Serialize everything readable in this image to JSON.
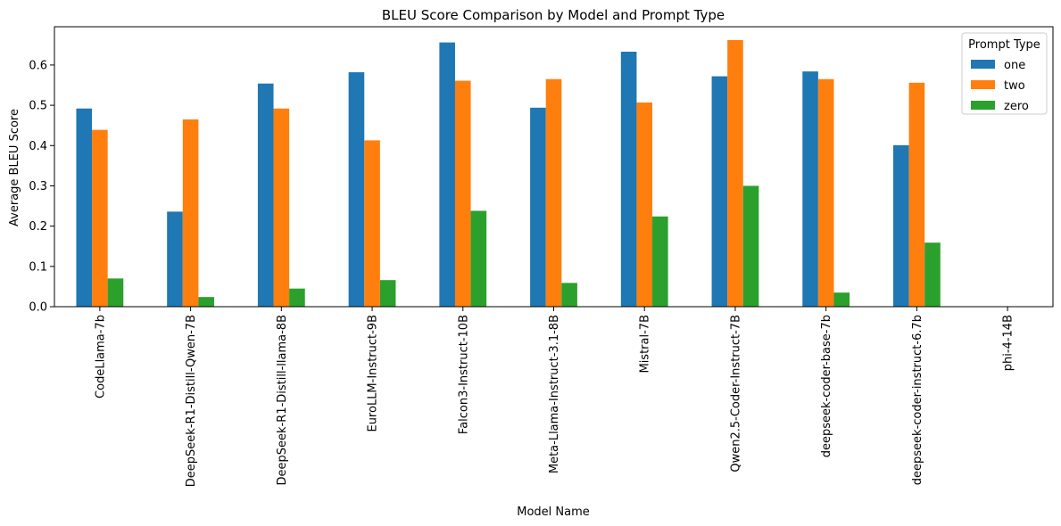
{
  "chart_data": {
    "type": "bar",
    "title": "BLEU Score Comparison by Model and Prompt Type",
    "xlabel": "Model Name",
    "ylabel": "Average BLEU Score",
    "ylim": [
      0,
      0.695
    ],
    "yticks": [
      0.0,
      0.1,
      0.2,
      0.3,
      0.4,
      0.5,
      0.6
    ],
    "ytick_labels": [
      "0.0",
      "0.1",
      "0.2",
      "0.3",
      "0.4",
      "0.5",
      "0.6"
    ],
    "grid": false,
    "legend": {
      "title": "Prompt Type",
      "placement": "top-right"
    },
    "categories": [
      "CodeLlama-7b",
      "DeepSeek-R1-Distill-Qwen-7B",
      "DeepSeek-R1-Distill-llama-8B",
      "EuroLLM-Instruct-9B",
      "Falcon3-Instruct-10B",
      "Meta-Llama-Instruct-3.1-8B",
      "Mistral-7B",
      "Qwen2.5-Coder-Instruct-7B",
      "deepseek-coder-base-7b",
      "deepseek-coder-instruct-6.7b",
      "phi-4-14B"
    ],
    "series": [
      {
        "name": "one",
        "color": "#1f77b4",
        "values": [
          0.492,
          0.236,
          0.554,
          0.582,
          0.656,
          0.494,
          0.633,
          0.572,
          0.584,
          0.401,
          0.0
        ]
      },
      {
        "name": "two",
        "color": "#ff7f0e",
        "values": [
          0.439,
          0.465,
          0.492,
          0.413,
          0.561,
          0.565,
          0.507,
          0.662,
          0.565,
          0.556,
          0.0
        ]
      },
      {
        "name": "zero",
        "color": "#2ca02c",
        "values": [
          0.07,
          0.024,
          0.045,
          0.066,
          0.238,
          0.059,
          0.224,
          0.3,
          0.035,
          0.159,
          0.0
        ]
      }
    ]
  }
}
